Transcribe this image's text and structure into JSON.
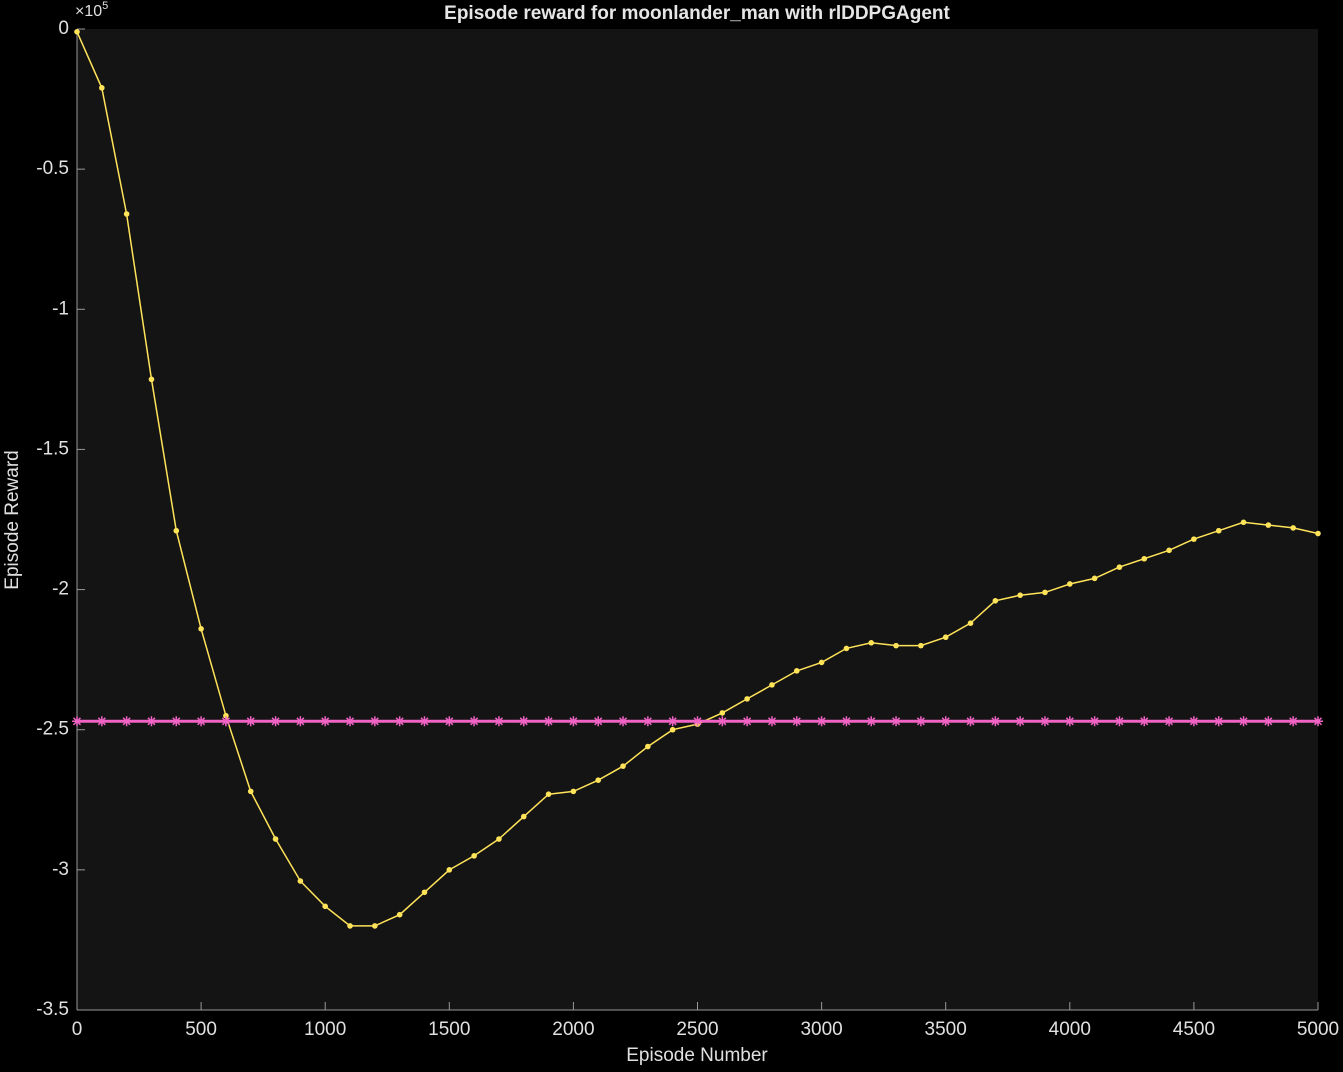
{
  "chart_data": {
    "type": "line",
    "title": "Episode reward for moonlander_man with rlDDPGAgent",
    "xlabel": "Episode Number",
    "ylabel": "Episode Reward",
    "y_multiplier": {
      "base": "×10",
      "exponent": "5"
    },
    "x": [
      0,
      100,
      200,
      300,
      400,
      500,
      600,
      700,
      800,
      900,
      1000,
      1100,
      1200,
      1300,
      1400,
      1500,
      1600,
      1700,
      1800,
      1900,
      2000,
      2100,
      2200,
      2300,
      2400,
      2500,
      2600,
      2700,
      2800,
      2900,
      3000,
      3100,
      3200,
      3300,
      3400,
      3500,
      3600,
      3700,
      3800,
      3900,
      4000,
      4100,
      4200,
      4300,
      4400,
      4500,
      4600,
      4700,
      4800,
      4900,
      5000
    ],
    "series": [
      {
        "color": "#ffe359",
        "marker": "circle",
        "values": [
          -0.01,
          -0.21,
          -0.66,
          -1.25,
          -1.79,
          -2.14,
          -2.45,
          -2.72,
          -2.89,
          -3.04,
          -3.13,
          -3.2,
          -3.2,
          -3.16,
          -3.08,
          -3.0,
          -2.95,
          -2.89,
          -2.81,
          -2.73,
          -2.72,
          -2.68,
          -2.63,
          -2.56,
          -2.5,
          -2.48,
          -2.44,
          -2.39,
          -2.34,
          -2.29,
          -2.26,
          -2.21,
          -2.19,
          -2.2,
          -2.2,
          -2.17,
          -2.12,
          -2.04,
          -2.02,
          -2.01,
          -1.98,
          -1.96,
          -1.92,
          -1.89,
          -1.86,
          -1.82,
          -1.79,
          -1.76,
          -1.77,
          -1.78,
          -1.8
        ]
      },
      {
        "color": "#f063c4",
        "marker": "asterisk",
        "values": [
          -2.47,
          -2.47,
          -2.47,
          -2.47,
          -2.47,
          -2.47,
          -2.47,
          -2.47,
          -2.47,
          -2.47,
          -2.47,
          -2.47,
          -2.47,
          -2.47,
          -2.47,
          -2.47,
          -2.47,
          -2.47,
          -2.47,
          -2.47,
          -2.47,
          -2.47,
          -2.47,
          -2.47,
          -2.47,
          -2.47,
          -2.47,
          -2.47,
          -2.47,
          -2.47,
          -2.47,
          -2.47,
          -2.47,
          -2.47,
          -2.47,
          -2.47,
          -2.47,
          -2.47,
          -2.47,
          -2.47,
          -2.47,
          -2.47,
          -2.47,
          -2.47,
          -2.47,
          -2.47,
          -2.47,
          -2.47,
          -2.47,
          -2.47,
          -2.47
        ]
      }
    ],
    "xlim": [
      0,
      5000
    ],
    "xticks": [
      0,
      500,
      1000,
      1500,
      2000,
      2500,
      3000,
      3500,
      4000,
      4500,
      5000
    ],
    "ylim": [
      -3.5,
      0
    ],
    "yticks": [
      -3.5,
      -3,
      -2.5,
      -2,
      -1.5,
      -1,
      -0.5,
      0
    ],
    "grid": false
  }
}
